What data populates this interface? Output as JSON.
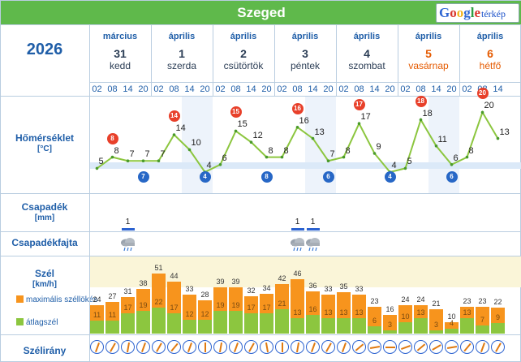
{
  "header": {
    "city": "Szeged",
    "google_logo": "Google",
    "map_label": "térkép"
  },
  "year": "2026",
  "days": [
    {
      "month": "március",
      "num": "31",
      "weekday": "kedd",
      "weekend": false
    },
    {
      "month": "április",
      "num": "1",
      "weekday": "szerda",
      "weekend": false
    },
    {
      "month": "április",
      "num": "2",
      "weekday": "csütörtök",
      "weekend": false
    },
    {
      "month": "április",
      "num": "3",
      "weekday": "péntek",
      "weekend": false
    },
    {
      "month": "április",
      "num": "4",
      "weekday": "szombat",
      "weekend": false
    },
    {
      "month": "április",
      "num": "5",
      "weekday": "vasárnap",
      "weekend": true
    },
    {
      "month": "április",
      "num": "6",
      "weekday": "hétfő",
      "weekend": true
    }
  ],
  "hours": [
    "02",
    "08",
    "14",
    "20"
  ],
  "rows": {
    "temp": {
      "label": "Hőmérséklet",
      "unit": "[°C]"
    },
    "precip": {
      "label": "Csapadék",
      "unit": "[mm]"
    },
    "ptype": {
      "label": "Csapadékfajta"
    },
    "wind": {
      "label": "Szél",
      "unit": "[km/h]",
      "gust_label": "maximális széllökés",
      "avg_label": "átlagszél"
    },
    "dir": {
      "label": "Szélirány"
    }
  },
  "chart_data": {
    "type": "line",
    "temperature": [
      5,
      8,
      7,
      7,
      7,
      14,
      10,
      4,
      6,
      15,
      12,
      8,
      8,
      16,
      13,
      7,
      8,
      17,
      9,
      4,
      5,
      18,
      11,
      6,
      8,
      20,
      13
    ],
    "day_max": [
      8,
      14,
      15,
      16,
      17,
      18,
      20
    ],
    "day_min": [
      7,
      4,
      8,
      6,
      4,
      6
    ],
    "precip_mm": [
      null,
      null,
      1,
      null,
      null,
      null,
      null,
      null,
      null,
      null,
      null,
      null,
      null,
      1,
      1,
      null,
      null,
      null,
      null,
      null,
      null,
      null,
      null,
      null,
      null,
      null,
      null
    ],
    "wind_gust": [
      24,
      27,
      31,
      38,
      51,
      44,
      33,
      28,
      39,
      39,
      32,
      34,
      42,
      46,
      36,
      33,
      35,
      33,
      23,
      16,
      24,
      24,
      21,
      10,
      23,
      23,
      22
    ],
    "wind_avg": [
      11,
      11,
      17,
      19,
      22,
      17,
      12,
      12,
      19,
      19,
      17,
      17,
      21,
      13,
      16,
      13,
      13,
      13,
      6,
      3,
      10,
      13,
      3,
      4,
      13,
      7,
      9
    ],
    "wind_dir_deg": [
      200,
      210,
      190,
      200,
      210,
      220,
      200,
      180,
      190,
      200,
      210,
      170,
      180,
      190,
      200,
      210,
      200,
      230,
      260,
      270,
      250,
      230,
      240,
      260,
      220,
      200,
      210
    ],
    "colors": {
      "gust": "#f7941d",
      "avg": "#8cc63f",
      "temp_line": "#8cc63f",
      "max": "#e8402a",
      "min": "#2767c6"
    }
  }
}
